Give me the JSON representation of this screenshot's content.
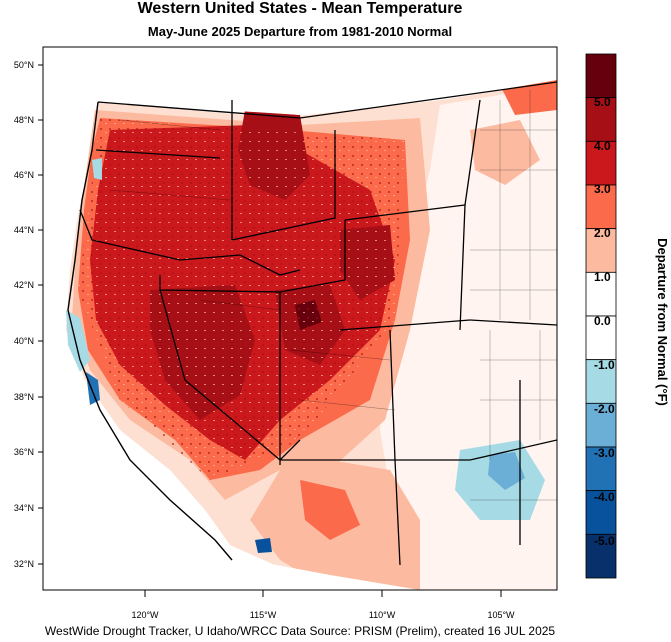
{
  "title": "Western United States - Mean Temperature",
  "subtitle": "May-June 2025  Departure from 1981-2010 Normal",
  "credit": "WestWide Drought Tracker, U Idaho/WRCC Data Source: PRISM (Prelim), created 16 JUL 2025",
  "map": {
    "lat_ticks": [
      "50°N",
      "48°N",
      "46°N",
      "44°N",
      "42°N",
      "40°N",
      "38°N",
      "36°N",
      "34°N",
      "32°N"
    ],
    "lon_ticks": [
      "120°W",
      "115°W",
      "110°W",
      "105°W"
    ]
  },
  "colorbar": {
    "title": "Departure from Normal (°F)",
    "tick_labels": [
      "5.0",
      "4.0",
      "3.0",
      "2.0",
      "1.0",
      "0.0",
      "-1.0",
      "-2.0",
      "-3.0",
      "-4.0",
      "-5.0"
    ],
    "bins": [
      {
        "color": "#67000d"
      },
      {
        "color": "#a50f15"
      },
      {
        "color": "#cb181d"
      },
      {
        "color": "#fb6a4a"
      },
      {
        "color": "#fcbba1"
      },
      {
        "color": "#ffffff"
      },
      {
        "color": "#ffffff"
      },
      {
        "color": "#a6dbe6"
      },
      {
        "color": "#6baed6"
      },
      {
        "color": "#2171b5"
      },
      {
        "color": "#08519c"
      },
      {
        "color": "#08306b"
      }
    ]
  }
}
